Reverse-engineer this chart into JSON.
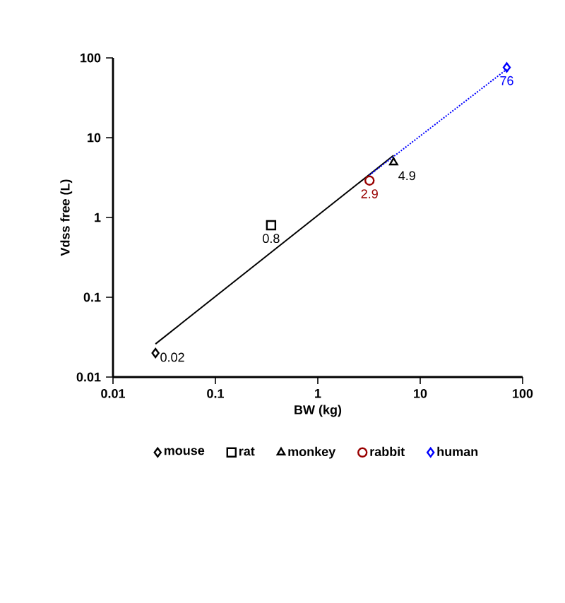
{
  "chart_data": {
    "type": "scatter",
    "xlabel": "BW (kg)",
    "ylabel": "Vdss free (L)",
    "log": "xy",
    "xlim": [
      0.01,
      100
    ],
    "ylim": [
      0.01,
      100
    ],
    "xticks": [
      0.01,
      0.1,
      1,
      10,
      100
    ],
    "yticks": [
      0.01,
      0.1,
      1,
      10,
      100
    ],
    "grid": false,
    "legend": "bottom",
    "series": [
      {
        "name": "mouse",
        "color": "#000000",
        "marker": "diamond",
        "x": [
          0.026
        ],
        "values": [
          0.02
        ],
        "value_labels": [
          "0.02"
        ]
      },
      {
        "name": "rat",
        "color": "#000000",
        "marker": "square",
        "x": [
          0.35
        ],
        "values": [
          0.8
        ],
        "value_labels": [
          "0.8"
        ]
      },
      {
        "name": "monkey",
        "color": "#000000",
        "marker": "triangle",
        "x": [
          5.5
        ],
        "values": [
          4.9
        ],
        "value_labels": [
          "4.9"
        ]
      },
      {
        "name": "rabbit",
        "color": "#990000",
        "marker": "circle",
        "x": [
          3.2
        ],
        "values": [
          2.9
        ],
        "value_labels": [
          "2.9"
        ]
      },
      {
        "name": "human",
        "color": "#0000ff",
        "marker": "diamond",
        "x": [
          70
        ],
        "values": [
          76
        ],
        "value_labels": [
          "76"
        ]
      },
      {
        "type": "line",
        "color": "#000000",
        "line_style": "solid",
        "marker": "none",
        "x": [
          0.026,
          5.5
        ],
        "values": [
          0.026,
          6.0
        ]
      },
      {
        "type": "line",
        "color": "#0000ff",
        "line_style": "dotted",
        "marker": "none",
        "x": [
          3.2,
          70
        ],
        "values": [
          3.4,
          72
        ]
      }
    ]
  }
}
